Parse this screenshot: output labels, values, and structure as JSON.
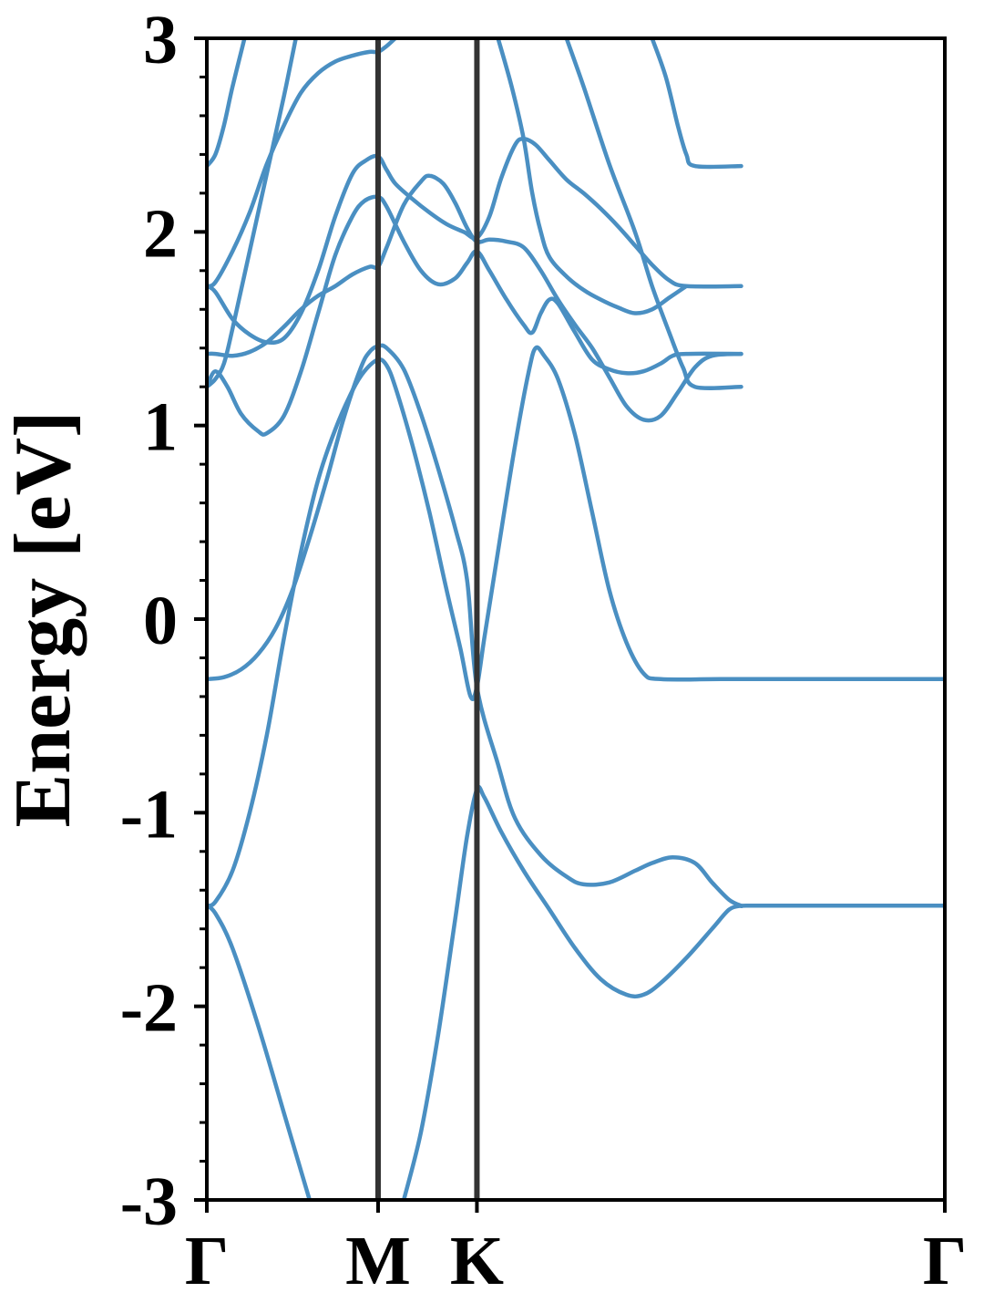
{
  "chart_data": {
    "type": "line",
    "title": "",
    "xlabel": "",
    "ylabel": "Energy [eV]",
    "ylim": [
      -3,
      3
    ],
    "yticks": [
      {
        "value": 3,
        "label": "3"
      },
      {
        "value": 2,
        "label": "2"
      },
      {
        "value": 1,
        "label": "1"
      },
      {
        "value": 0,
        "label": "0"
      },
      {
        "value": -1,
        "label": "-1"
      },
      {
        "value": -2,
        "label": "-2"
      },
      {
        "value": -3,
        "label": "-3"
      }
    ],
    "yminor_step": 0.2,
    "kpath": {
      "labels": [
        "Γ",
        "M",
        "K",
        "Γ"
      ],
      "positions": [
        0,
        1,
        1.577,
        4.309
      ]
    },
    "high_symmetry_lines": [
      1,
      1.577
    ],
    "grid": false,
    "colors": {
      "band": "#4a8fc2",
      "vline": "#333333",
      "axis": "#000000"
    },
    "series": [
      {
        "values": [
          [
            0,
            -0.31
          ],
          [
            0.1,
            -0.3
          ],
          [
            0.2,
            -0.26
          ],
          [
            0.3,
            -0.18
          ],
          [
            0.4,
            -0.05
          ],
          [
            0.5,
            0.15
          ],
          [
            0.6,
            0.42
          ],
          [
            0.7,
            0.72
          ],
          [
            0.8,
            1.04
          ],
          [
            0.9,
            1.3
          ],
          [
            0.95,
            1.38
          ],
          [
            1,
            1.41
          ],
          [
            1.05,
            1.4
          ],
          [
            1.15,
            1.29
          ],
          [
            1.25,
            1.06
          ],
          [
            1.35,
            0.78
          ],
          [
            1.45,
            0.47
          ],
          [
            1.52,
            0.2
          ],
          [
            1.577,
            -0.35
          ],
          [
            1.7,
            -0.75
          ],
          [
            1.8,
            -1.03
          ],
          [
            1.95,
            -1.22
          ],
          [
            2.1,
            -1.33
          ],
          [
            2.2,
            -1.37
          ],
          [
            2.35,
            -1.36
          ],
          [
            2.5,
            -1.3
          ],
          [
            2.6,
            -1.26
          ],
          [
            2.72,
            -1.23
          ],
          [
            2.85,
            -1.26
          ],
          [
            2.95,
            -1.36
          ],
          [
            3.05,
            -1.45
          ],
          [
            3.12,
            -1.48
          ],
          [
            3.15,
            -1.48
          ],
          [
            3.45,
            -1.48
          ],
          [
            3.7,
            -1.48
          ],
          [
            4.0,
            -1.48
          ],
          [
            4.309,
            -1.48
          ]
        ]
      },
      {
        "values": [
          [
            0,
            -1.48
          ],
          [
            0.05,
            -1.46
          ],
          [
            0.15,
            -1.3
          ],
          [
            0.25,
            -1.0
          ],
          [
            0.35,
            -0.6
          ],
          [
            0.45,
            -0.1
          ],
          [
            0.55,
            0.35
          ],
          [
            0.65,
            0.72
          ],
          [
            0.75,
            0.98
          ],
          [
            0.85,
            1.18
          ],
          [
            0.92,
            1.28
          ],
          [
            1,
            1.34
          ],
          [
            1.05,
            1.31
          ],
          [
            1.1,
            1.2
          ],
          [
            1.2,
            0.9
          ],
          [
            1.3,
            0.55
          ],
          [
            1.4,
            0.15
          ],
          [
            1.48,
            -0.15
          ],
          [
            1.54,
            -0.4
          ],
          [
            1.577,
            -0.35
          ],
          [
            1.62,
            -0.1
          ],
          [
            1.7,
            0.35
          ],
          [
            1.8,
            0.9
          ],
          [
            1.88,
            1.28
          ],
          [
            1.92,
            1.4
          ],
          [
            1.97,
            1.36
          ],
          [
            2.05,
            1.24
          ],
          [
            2.15,
            0.95
          ],
          [
            2.25,
            0.55
          ],
          [
            2.35,
            0.15
          ],
          [
            2.45,
            -0.12
          ],
          [
            2.55,
            -0.28
          ],
          [
            2.65,
            -0.31
          ],
          [
            3.0,
            -0.31
          ],
          [
            3.5,
            -0.31
          ],
          [
            4.309,
            -0.31
          ]
        ]
      },
      {
        "values": [
          [
            0,
            -1.48
          ],
          [
            0.05,
            -1.52
          ],
          [
            0.15,
            -1.7
          ],
          [
            0.3,
            -2.1
          ],
          [
            0.45,
            -2.55
          ],
          [
            0.55,
            -2.85
          ],
          [
            0.6,
            -3.0
          ]
        ]
      },
      {
        "values": [
          [
            1.15,
            -3.0
          ],
          [
            1.25,
            -2.65
          ],
          [
            1.35,
            -2.15
          ],
          [
            1.45,
            -1.55
          ],
          [
            1.52,
            -1.12
          ],
          [
            1.577,
            -0.88
          ],
          [
            1.62,
            -0.92
          ],
          [
            1.72,
            -1.1
          ],
          [
            1.85,
            -1.3
          ],
          [
            2.0,
            -1.5
          ],
          [
            2.15,
            -1.7
          ],
          [
            2.3,
            -1.86
          ],
          [
            2.45,
            -1.94
          ],
          [
            2.55,
            -1.94
          ],
          [
            2.65,
            -1.88
          ],
          [
            2.8,
            -1.75
          ],
          [
            2.95,
            -1.6
          ],
          [
            3.05,
            -1.5
          ],
          [
            3.12,
            -1.48
          ]
        ]
      },
      {
        "values": [
          [
            0,
            1.2
          ],
          [
            0.05,
            1.24
          ],
          [
            0.1,
            1.32
          ],
          [
            0.15,
            1.5
          ],
          [
            0.25,
            1.9
          ],
          [
            0.35,
            2.3
          ],
          [
            0.45,
            2.7
          ],
          [
            0.52,
            3.0
          ]
        ]
      },
      {
        "values": [
          [
            0,
            1.2
          ],
          [
            0.05,
            1.28
          ],
          [
            0.12,
            1.2
          ],
          [
            0.2,
            1.06
          ],
          [
            0.3,
            0.97
          ],
          [
            0.35,
            0.96
          ],
          [
            0.45,
            1.05
          ],
          [
            0.55,
            1.28
          ],
          [
            0.65,
            1.58
          ],
          [
            0.75,
            1.88
          ],
          [
            0.85,
            2.08
          ],
          [
            0.92,
            2.16
          ],
          [
            1,
            2.18
          ],
          [
            1.05,
            2.13
          ],
          [
            1.15,
            1.95
          ],
          [
            1.25,
            1.8
          ],
          [
            1.35,
            1.73
          ],
          [
            1.45,
            1.76
          ],
          [
            1.52,
            1.84
          ],
          [
            1.577,
            1.9
          ],
          [
            1.65,
            1.8
          ],
          [
            1.75,
            1.65
          ],
          [
            1.85,
            1.52
          ],
          [
            1.9,
            1.48
          ],
          [
            1.95,
            1.58
          ],
          [
            2.0,
            1.65
          ],
          [
            2.05,
            1.63
          ],
          [
            2.15,
            1.48
          ],
          [
            2.25,
            1.34
          ],
          [
            2.35,
            1.29
          ],
          [
            2.45,
            1.27
          ],
          [
            2.55,
            1.28
          ],
          [
            2.65,
            1.32
          ],
          [
            2.72,
            1.36
          ],
          [
            2.8,
            1.37
          ],
          [
            3.12,
            1.37
          ]
        ]
      },
      {
        "values": [
          [
            0,
            1.37
          ],
          [
            0.05,
            1.37
          ],
          [
            0.15,
            1.36
          ],
          [
            0.25,
            1.38
          ],
          [
            0.35,
            1.43
          ],
          [
            0.45,
            1.51
          ],
          [
            0.55,
            1.6
          ],
          [
            0.65,
            1.67
          ],
          [
            0.75,
            1.72
          ],
          [
            0.85,
            1.78
          ],
          [
            0.95,
            1.82
          ],
          [
            1,
            1.82
          ],
          [
            1.05,
            1.92
          ],
          [
            1.15,
            2.14
          ],
          [
            1.25,
            2.26
          ],
          [
            1.3,
            2.29
          ],
          [
            1.38,
            2.25
          ],
          [
            1.45,
            2.15
          ],
          [
            1.52,
            2.02
          ],
          [
            1.577,
            1.95
          ],
          [
            1.65,
            1.96
          ],
          [
            1.75,
            1.95
          ],
          [
            1.85,
            1.92
          ],
          [
            1.95,
            1.8
          ],
          [
            2.05,
            1.65
          ],
          [
            2.15,
            1.52
          ],
          [
            2.25,
            1.4
          ],
          [
            2.35,
            1.25
          ],
          [
            2.45,
            1.1
          ],
          [
            2.55,
            1.03
          ],
          [
            2.65,
            1.05
          ],
          [
            2.75,
            1.17
          ],
          [
            2.85,
            1.3
          ],
          [
            2.95,
            1.36
          ],
          [
            3.12,
            1.37
          ]
        ]
      },
      {
        "values": [
          [
            0,
            1.72
          ],
          [
            0.05,
            1.69
          ],
          [
            0.15,
            1.55
          ],
          [
            0.25,
            1.47
          ],
          [
            0.35,
            1.43
          ],
          [
            0.45,
            1.45
          ],
          [
            0.55,
            1.58
          ],
          [
            0.65,
            1.8
          ],
          [
            0.75,
            2.08
          ],
          [
            0.85,
            2.3
          ],
          [
            0.93,
            2.37
          ],
          [
            1,
            2.39
          ],
          [
            1.05,
            2.32
          ],
          [
            1.1,
            2.25
          ],
          [
            1.2,
            2.17
          ],
          [
            1.3,
            2.1
          ],
          [
            1.4,
            2.04
          ],
          [
            1.5,
            2.0
          ],
          [
            1.577,
            1.97
          ],
          [
            1.65,
            2.08
          ],
          [
            1.72,
            2.28
          ],
          [
            1.8,
            2.45
          ],
          [
            1.85,
            2.48
          ],
          [
            1.92,
            2.45
          ],
          [
            2.0,
            2.37
          ],
          [
            2.1,
            2.27
          ],
          [
            2.2,
            2.2
          ],
          [
            2.3,
            2.12
          ],
          [
            2.4,
            2.03
          ],
          [
            2.5,
            1.93
          ],
          [
            2.6,
            1.83
          ],
          [
            2.7,
            1.75
          ],
          [
            2.8,
            1.72
          ],
          [
            3.12,
            1.72
          ]
        ]
      },
      {
        "values": [
          [
            0,
            1.72
          ],
          [
            0.05,
            1.74
          ],
          [
            0.15,
            1.9
          ],
          [
            0.25,
            2.1
          ],
          [
            0.35,
            2.35
          ],
          [
            0.45,
            2.55
          ],
          [
            0.55,
            2.72
          ],
          [
            0.65,
            2.82
          ],
          [
            0.75,
            2.88
          ],
          [
            0.85,
            2.91
          ],
          [
            0.95,
            2.93
          ],
          [
            1,
            2.93
          ],
          [
            1.05,
            2.96
          ],
          [
            1.1,
            3.0
          ]
        ]
      },
      {
        "values": [
          [
            0,
            2.34
          ],
          [
            0.05,
            2.4
          ],
          [
            0.1,
            2.55
          ],
          [
            0.15,
            2.75
          ],
          [
            0.22,
            3.0
          ]
        ]
      },
      {
        "values": [
          [
            1.7,
            3.0
          ],
          [
            1.78,
            2.75
          ],
          [
            1.85,
            2.48
          ],
          [
            1.9,
            2.2
          ],
          [
            1.95,
            2.0
          ],
          [
            2.0,
            1.87
          ],
          [
            2.1,
            1.77
          ],
          [
            2.2,
            1.7
          ],
          [
            2.3,
            1.65
          ],
          [
            2.4,
            1.61
          ],
          [
            2.5,
            1.58
          ],
          [
            2.6,
            1.6
          ],
          [
            2.7,
            1.66
          ],
          [
            2.8,
            1.72
          ]
        ]
      },
      {
        "values": [
          [
            2.1,
            3.0
          ],
          [
            2.2,
            2.75
          ],
          [
            2.35,
            2.35
          ],
          [
            2.5,
            2.0
          ],
          [
            2.6,
            1.72
          ],
          [
            2.7,
            1.48
          ],
          [
            2.78,
            1.3
          ],
          [
            2.85,
            1.2
          ],
          [
            3.12,
            1.2
          ]
        ]
      },
      {
        "values": [
          [
            2.6,
            3.0
          ],
          [
            2.68,
            2.8
          ],
          [
            2.75,
            2.55
          ],
          [
            2.8,
            2.4
          ],
          [
            2.85,
            2.34
          ],
          [
            3.12,
            2.34
          ]
        ]
      }
    ]
  }
}
